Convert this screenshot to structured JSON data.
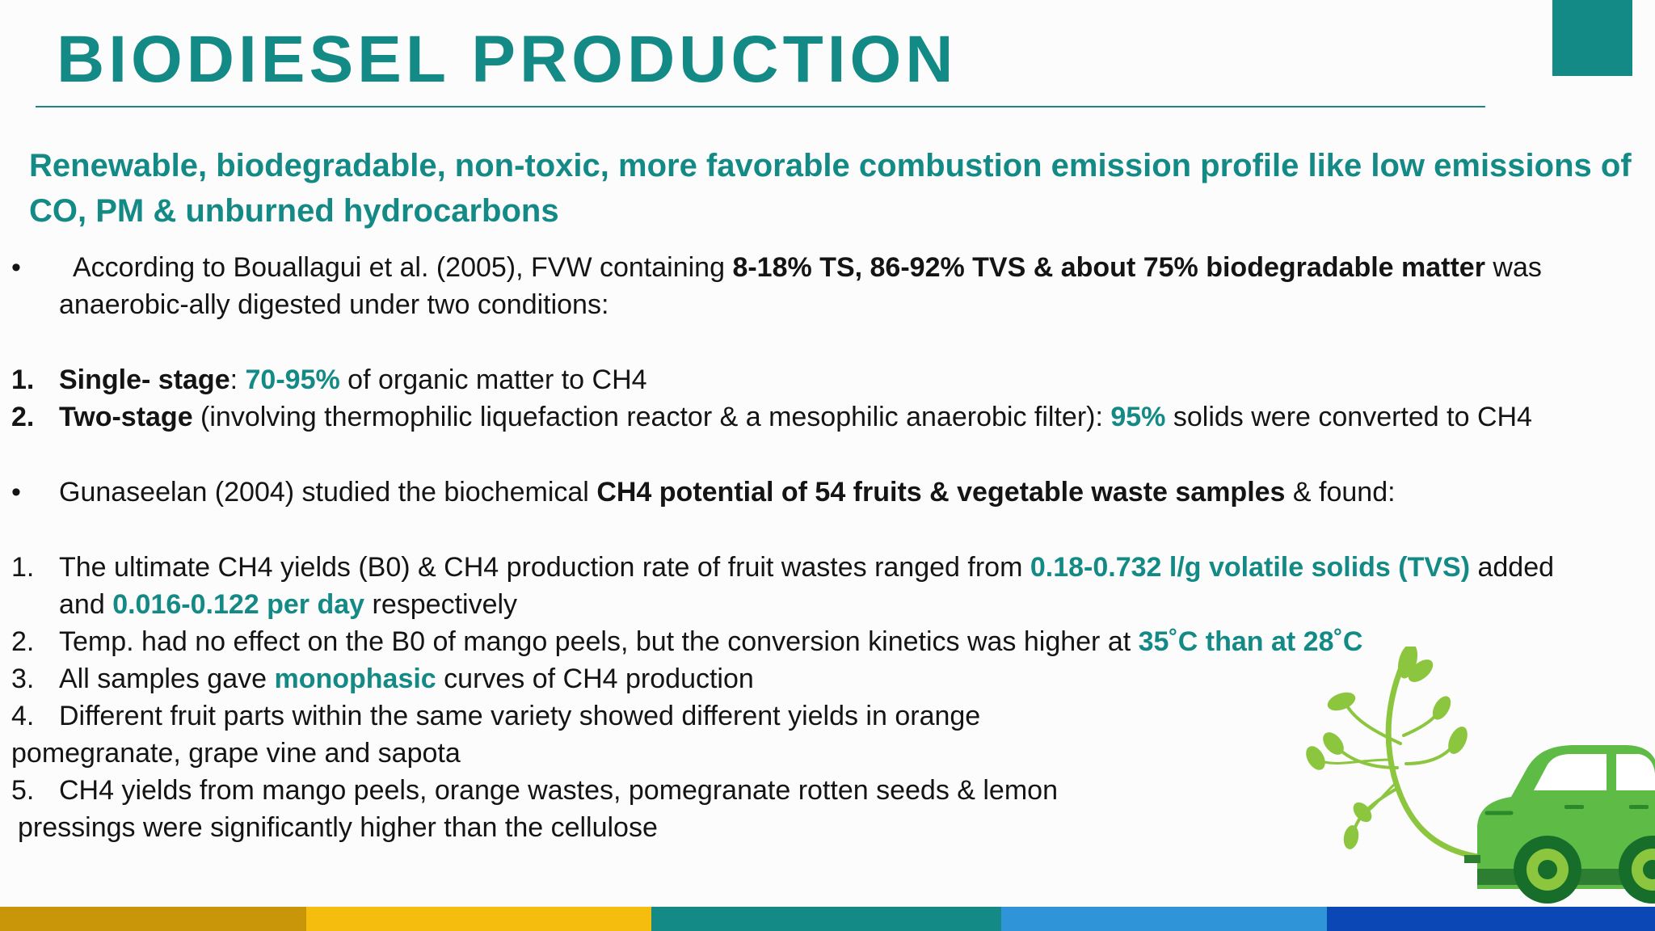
{
  "slide": {
    "title": "BIODIESEL PRODUCTION",
    "subtitle": "Renewable, biodegradable, non-toxic, more favorable combustion emission profile like low emissions of CO, PM & unburned hydrocarbons",
    "accent_color": "#138a85"
  },
  "bullet1": {
    "marker": "•",
    "line1": {
      "pre": "According to Bouallagui et al. (2005), FVW containing ",
      "bold": "8-18% TS, 86-92% TVS & about 75% biodegradable matter",
      "post": " was"
    },
    "line2": "anaerobic-ally digested under two conditions:"
  },
  "conditions": [
    {
      "num": "1.",
      "label": "Single- stage",
      "pre": ": ",
      "highlight": "70-95%",
      "post": " of organic matter to CH4"
    },
    {
      "num": "2.",
      "label": "Two-stage",
      "pre": " (involving thermophilic liquefaction reactor & a mesophilic anaerobic filter): ",
      "highlight": "95%",
      "post": " solids were converted to CH4"
    }
  ],
  "bullet2": {
    "marker": "•",
    "pre": "Gunaseelan (2004) studied the biochemical ",
    "bold": "CH4 potential of 54 fruits & vegetable waste samples",
    "post": " & found:"
  },
  "findings": {
    "f1": {
      "num": "1.",
      "pre": "The ultimate CH4 yields (B0) & CH4 production rate of fruit wastes ranged from ",
      "hl1": "0.18-0.732 l/g volatile solids (TVS)",
      "mid": " added",
      "line2_pre": "and ",
      "hl2": "0.016-0.122 per day",
      "line2_post": " respectively"
    },
    "f2": {
      "num": "2.",
      "pre": "Temp. had no effect on the B0 of mango peels, but the conversion kinetics was higher at ",
      "hl": "35˚C than at 28˚C"
    },
    "f3": {
      "num": "3.",
      "pre": "All samples gave ",
      "hl": "monophasic",
      "post": " curves of CH4 production"
    },
    "f4": {
      "num": "4.",
      "line1": "Different fruit parts within the same variety showed different yields in orange",
      "line2": "pomegranate, grape vine and sapota"
    },
    "f5": {
      "num": "5.",
      "line1": "CH4 yields from mango peels, orange wastes, pomegranate rotten seeds & lemon",
      "line2": "pressings were significantly higher than the cellulose"
    }
  },
  "illustration": {
    "icon": "eco-car-with-plant-exhaust-icon",
    "car_color": "#5dbb46",
    "leaf_color": "#8cc63f"
  },
  "footer_colors": [
    "#c9960a",
    "#f5bd0e",
    "#138a85",
    "#2f95d8",
    "#0b48b6"
  ]
}
